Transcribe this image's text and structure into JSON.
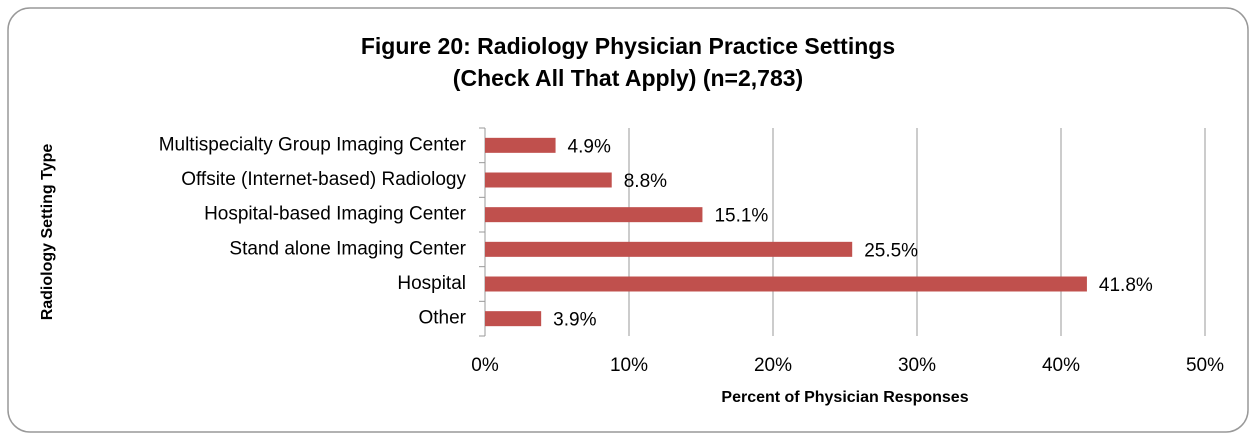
{
  "chart_data": {
    "type": "hbar",
    "title": [
      "Figure 20: Radiology Physician Practice Settings",
      "(Check All That Apply) (n=2,783)"
    ],
    "x_label": "Percent of Physician Responses",
    "y_label": "Radiology Setting Type",
    "categories": [
      "Multispecialty Group Imaging Center",
      "Offsite (Internet-based) Radiology",
      "Hospital-based Imaging Center",
      "Stand alone Imaging Center",
      "Hospital",
      "Other"
    ],
    "values": [
      4.9,
      8.8,
      15.1,
      25.5,
      41.8,
      3.9
    ],
    "value_labels": [
      "4.9%",
      "8.8%",
      "15.1%",
      "25.5%",
      "41.8%",
      "3.9%"
    ],
    "color": "#c0504d",
    "xlim": [
      0,
      50
    ],
    "xticks": [
      {
        "value": 0,
        "label": "0%"
      },
      {
        "value": 10,
        "label": "10%"
      },
      {
        "value": 20,
        "label": "20%"
      },
      {
        "value": 30,
        "label": "30%"
      },
      {
        "value": 40,
        "label": "40%"
      },
      {
        "value": 50,
        "label": "50%"
      }
    ],
    "grid": true
  }
}
